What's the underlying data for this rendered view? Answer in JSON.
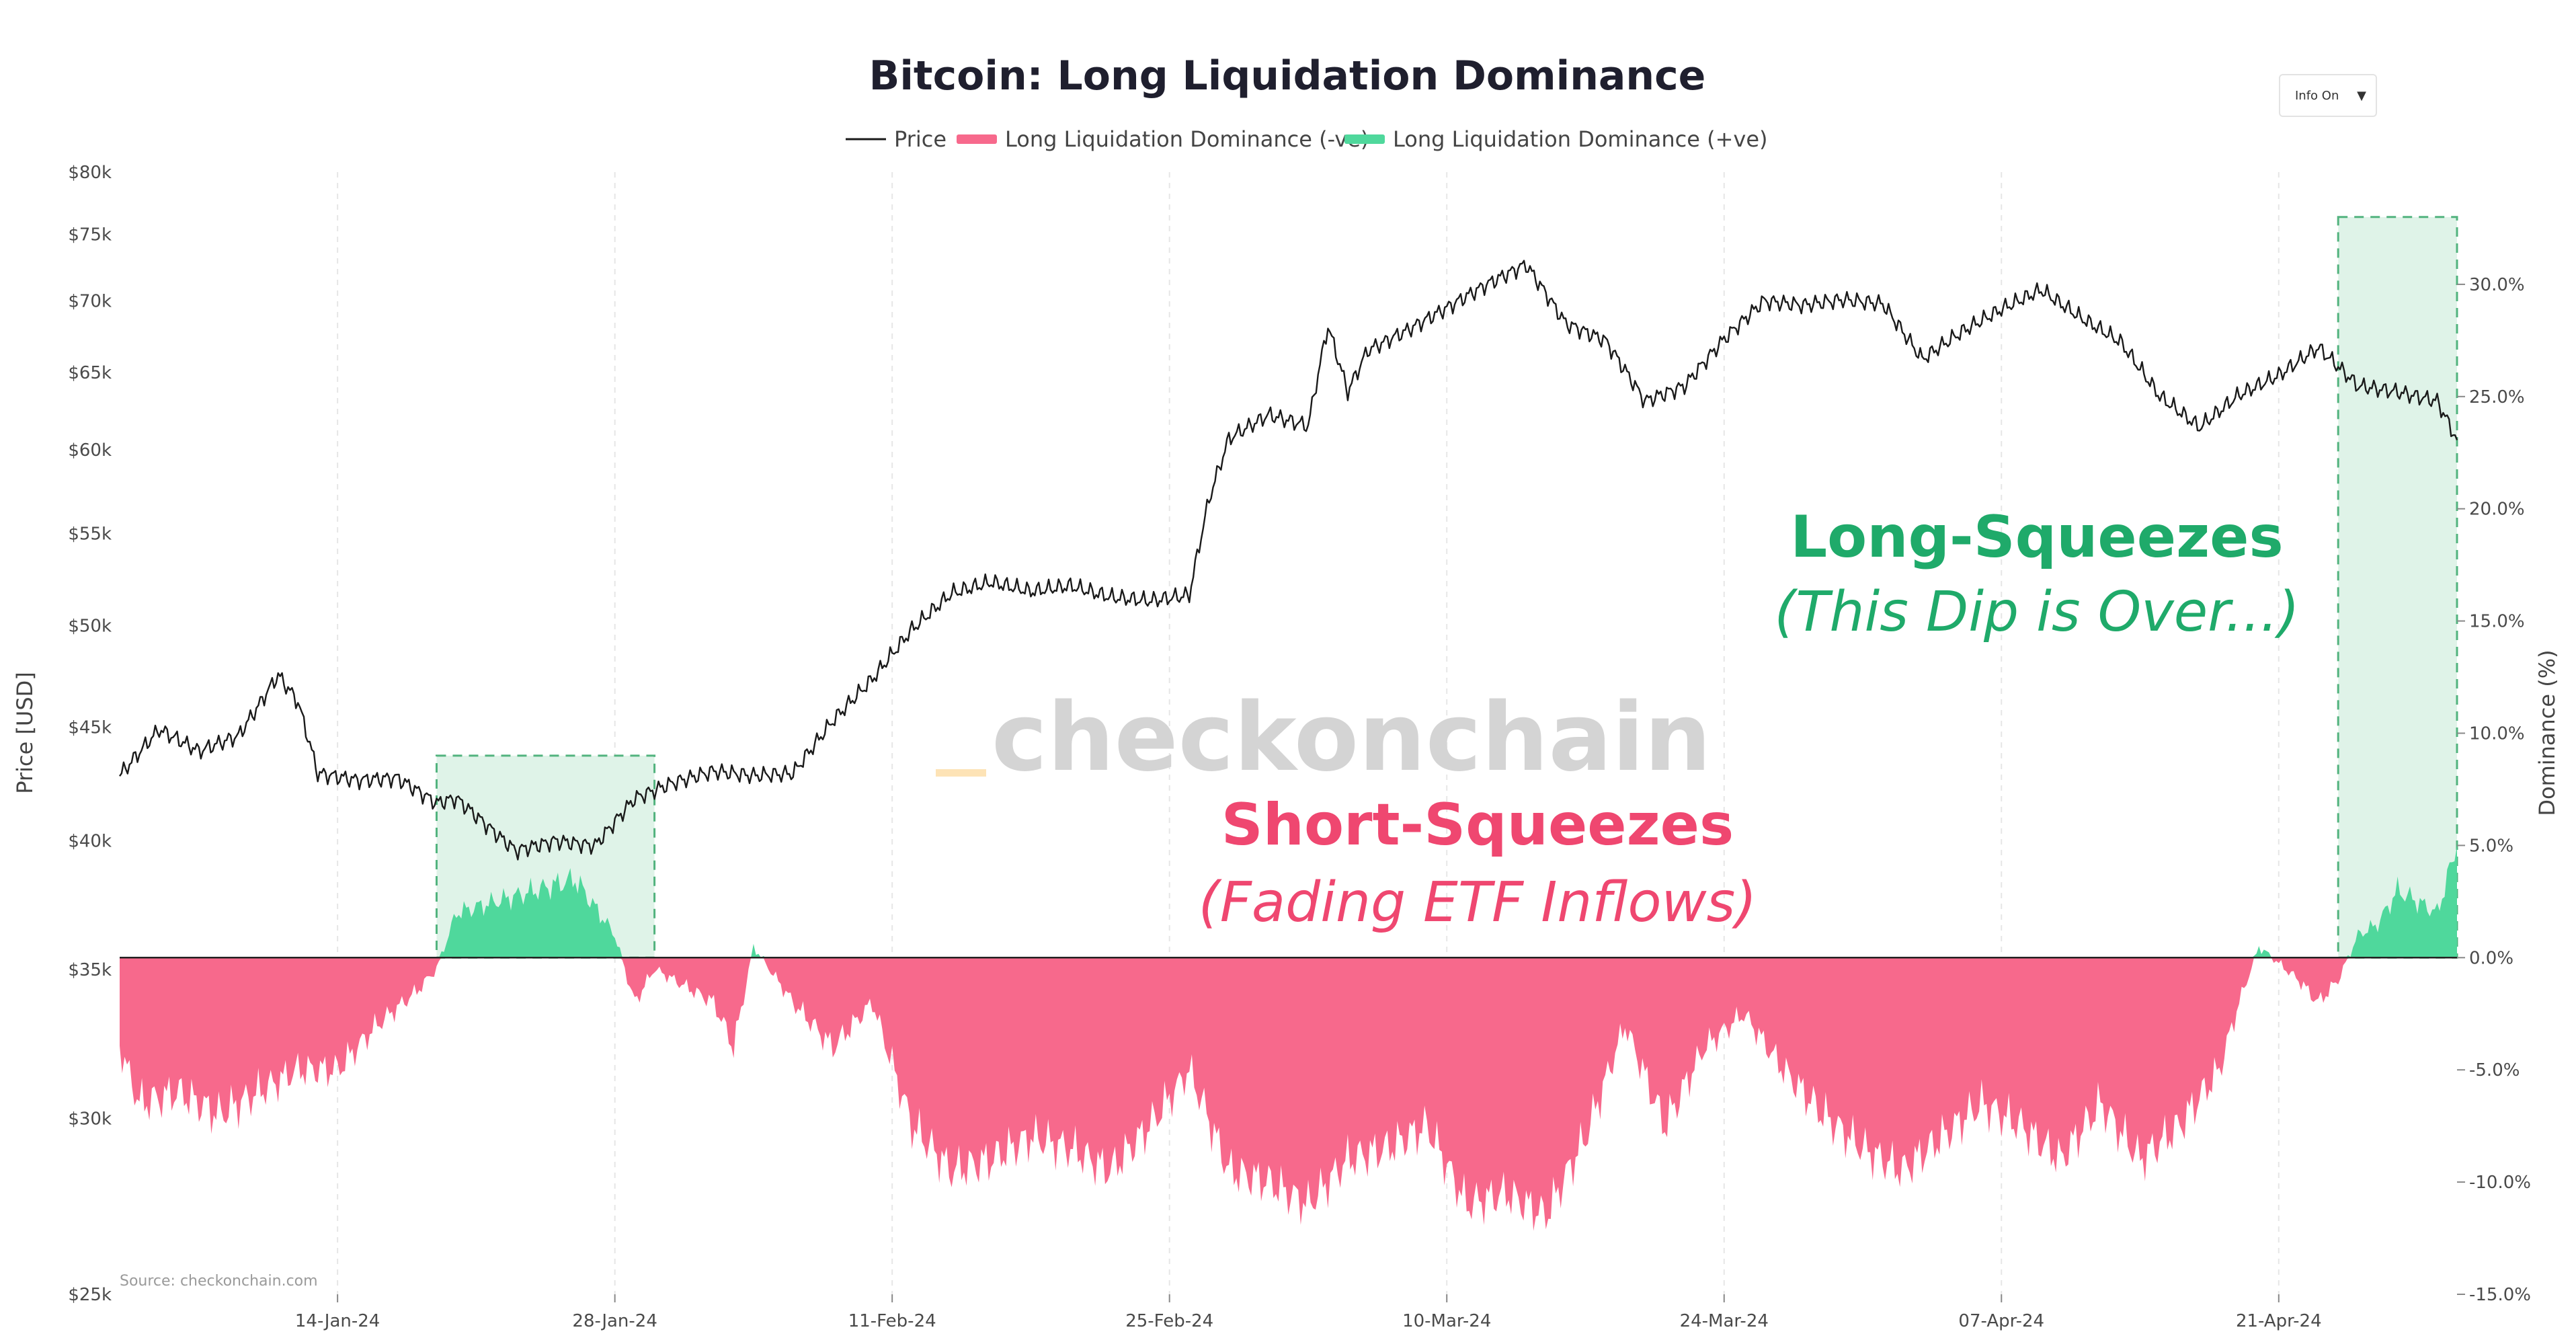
{
  "info_toggle": {
    "label": "Info On",
    "caret": "▼"
  },
  "colors": {
    "price": "#1a1a1a",
    "negative": "#f7698c",
    "positive": "#4fd89c",
    "highlight_fill": "#dff3e8",
    "highlight_border": "#52b37e",
    "long_text": "#1faa6a",
    "short_text": "#ef4770",
    "watermark_accent": "#fde3b6"
  },
  "watermark": "checkonchain",
  "source": "Source: checkonchain.com",
  "annotations": {
    "long_title": "Long-Squeezes",
    "long_sub": "(This Dip is Over...)",
    "short_title": "Short-Squeezes",
    "short_sub": "(Fading ETF Inflows)"
  },
  "chart_data": {
    "type": "line",
    "title": "Bitcoin: Long Liquidation Dominance",
    "ylabel": "Price [USD]",
    "y2label": "Dominance (%)",
    "legend": [
      {
        "name": "Price",
        "kind": "line"
      },
      {
        "name": "Long Liquidation Dominance (-ve)",
        "kind": "bar"
      },
      {
        "name": "Long Liquidation Dominance (+ve)",
        "kind": "bar"
      }
    ],
    "legend_position": "top-center",
    "grid": true,
    "y_scale": "log",
    "ylim": [
      25000,
      80000
    ],
    "y_ticks": [
      "$25k",
      "$30k",
      "$35k",
      "$40k",
      "$45k",
      "$50k",
      "$55k",
      "$60k",
      "$65k",
      "$70k",
      "$75k",
      "$80k"
    ],
    "y_tick_values": [
      25000,
      30000,
      35000,
      40000,
      45000,
      50000,
      55000,
      60000,
      65000,
      70000,
      75000,
      80000
    ],
    "y2lim": [
      -15,
      35
    ],
    "y2_ticks": [
      "-15.0%",
      "-10.0%",
      "-5.0%",
      "0.0%",
      "5.0%",
      "10.0%",
      "15.0%",
      "20.0%",
      "25.0%",
      "30.0%"
    ],
    "y2_tick_values": [
      -15,
      -10,
      -5,
      0,
      5,
      10,
      15,
      20,
      25,
      30
    ],
    "xlim": [
      "2024-01-03",
      "2024-04-30"
    ],
    "x_ticks": [
      "14-Jan-24",
      "28-Jan-24",
      "11-Feb-24",
      "25-Feb-24",
      "10-Mar-24",
      "24-Mar-24",
      "07-Apr-24",
      "21-Apr-24"
    ],
    "x_tick_dates": [
      "2024-01-14",
      "2024-01-28",
      "2024-02-11",
      "2024-02-25",
      "2024-03-10",
      "2024-03-24",
      "2024-04-07",
      "2024-04-21"
    ],
    "highlight_ranges": [
      {
        "from": "2024-01-19",
        "to": "2024-01-30",
        "y2_top": 9
      },
      {
        "from": "2024-04-24",
        "to": "2024-04-30",
        "y2_top": 33
      }
    ],
    "price_series": {
      "name": "Price",
      "x": [
        "2024-01-03",
        "2024-01-05",
        "2024-01-07",
        "2024-01-09",
        "2024-01-10",
        "2024-01-11",
        "2024-01-12",
        "2024-01-13",
        "2024-01-15",
        "2024-01-17",
        "2024-01-19",
        "2024-01-20",
        "2024-01-22",
        "2024-01-23",
        "2024-01-25",
        "2024-01-27",
        "2024-01-29",
        "2024-01-31",
        "2024-02-02",
        "2024-02-04",
        "2024-02-06",
        "2024-02-08",
        "2024-02-10",
        "2024-02-12",
        "2024-02-14",
        "2024-02-16",
        "2024-02-18",
        "2024-02-20",
        "2024-02-22",
        "2024-02-24",
        "2024-02-26",
        "2024-02-27",
        "2024-02-28",
        "2024-03-01",
        "2024-03-03",
        "2024-03-04",
        "2024-03-05",
        "2024-03-06",
        "2024-03-08",
        "2024-03-10",
        "2024-03-12",
        "2024-03-14",
        "2024-03-16",
        "2024-03-18",
        "2024-03-20",
        "2024-03-22",
        "2024-03-24",
        "2024-03-26",
        "2024-03-28",
        "2024-03-30",
        "2024-04-01",
        "2024-04-03",
        "2024-04-05",
        "2024-04-07",
        "2024-04-09",
        "2024-04-11",
        "2024-04-13",
        "2024-04-15",
        "2024-04-17",
        "2024-04-19",
        "2024-04-21",
        "2024-04-23",
        "2024-04-25",
        "2024-04-27",
        "2024-04-29",
        "2024-04-30"
      ],
      "values": [
        42800,
        44900,
        43900,
        44600,
        46000,
        47500,
        46200,
        42900,
        42600,
        42700,
        41600,
        41800,
        40300,
        39600,
        40000,
        39800,
        41800,
        42500,
        43000,
        42800,
        42900,
        45300,
        47300,
        49800,
        51700,
        52300,
        51800,
        52100,
        51500,
        51300,
        51600,
        57000,
        60700,
        62200,
        61500,
        68200,
        63700,
        66500,
        67900,
        69500,
        71200,
        72700,
        68400,
        67200,
        63100,
        64100,
        67300,
        70000,
        69700,
        70100,
        69800,
        65900,
        67800,
        69400,
        70800,
        68800,
        67100,
        63400,
        61400,
        63500,
        64800,
        66700,
        64100,
        63700,
        63100,
        60600
      ]
    },
    "dominance_series": {
      "name": "Long Liquidation Dominance",
      "x": [
        "2024-01-03",
        "2024-01-04",
        "2024-01-06",
        "2024-01-08",
        "2024-01-10",
        "2024-01-12",
        "2024-01-14",
        "2024-01-16",
        "2024-01-18",
        "2024-01-19",
        "2024-01-20",
        "2024-01-22",
        "2024-01-24",
        "2024-01-26",
        "2024-01-28",
        "2024-01-29",
        "2024-01-30",
        "2024-01-31",
        "2024-02-02",
        "2024-02-03",
        "2024-02-04",
        "2024-02-06",
        "2024-02-08",
        "2024-02-10",
        "2024-02-12",
        "2024-02-14",
        "2024-02-16",
        "2024-02-18",
        "2024-02-20",
        "2024-02-22",
        "2024-02-24",
        "2024-02-26",
        "2024-02-28",
        "2024-03-01",
        "2024-03-03",
        "2024-03-05",
        "2024-03-07",
        "2024-03-09",
        "2024-03-11",
        "2024-03-13",
        "2024-03-15",
        "2024-03-17",
        "2024-03-19",
        "2024-03-21",
        "2024-03-23",
        "2024-03-25",
        "2024-03-27",
        "2024-03-29",
        "2024-03-31",
        "2024-04-02",
        "2024-04-04",
        "2024-04-06",
        "2024-04-08",
        "2024-04-10",
        "2024-04-12",
        "2024-04-14",
        "2024-04-16",
        "2024-04-18",
        "2024-04-19",
        "2024-04-20",
        "2024-04-22",
        "2024-04-23",
        "2024-04-24",
        "2024-04-25",
        "2024-04-26",
        "2024-04-27",
        "2024-04-28",
        "2024-04-29",
        "2024-04-30"
      ],
      "values": [
        -4,
        -6.5,
        -6,
        -7,
        -6,
        -5,
        -5,
        -3,
        -1.5,
        -0.5,
        2,
        2.5,
        3,
        3.5,
        1,
        -2,
        -0.5,
        -1,
        -2,
        -4,
        0.5,
        -2,
        -4,
        -2,
        -7.5,
        -9.5,
        -9,
        -8,
        -8.5,
        -9.5,
        -7.5,
        -5,
        -9.5,
        -10,
        -11,
        -9,
        -8.5,
        -7.5,
        -11,
        -10.5,
        -11.5,
        -8,
        -3,
        -7.5,
        -4,
        -2.5,
        -5,
        -7,
        -8.5,
        -9.5,
        -8,
        -6.5,
        -7.5,
        -9,
        -6.5,
        -9,
        -7.5,
        -5,
        -2,
        0.5,
        -1,
        -2,
        -1,
        1,
        1.5,
        3,
        2.5,
        2,
        5
      ]
    }
  }
}
